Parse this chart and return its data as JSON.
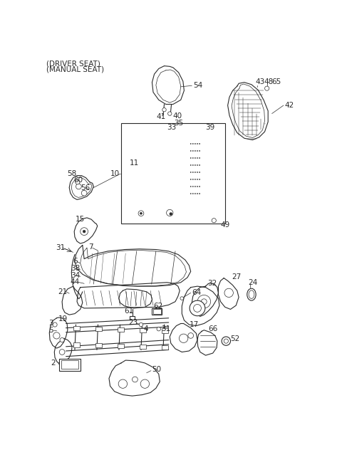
{
  "bg_color": "#ffffff",
  "line_color": "#2a2a2a",
  "title_line1": "(DRIVER SEAT)",
  "title_line2": "(MANUAL SEAT)",
  "title_fontsize": 7.5,
  "label_fontsize": 7.5,
  "lw_main": 0.8,
  "lw_thin": 0.5,
  "lw_grid": 0.35
}
